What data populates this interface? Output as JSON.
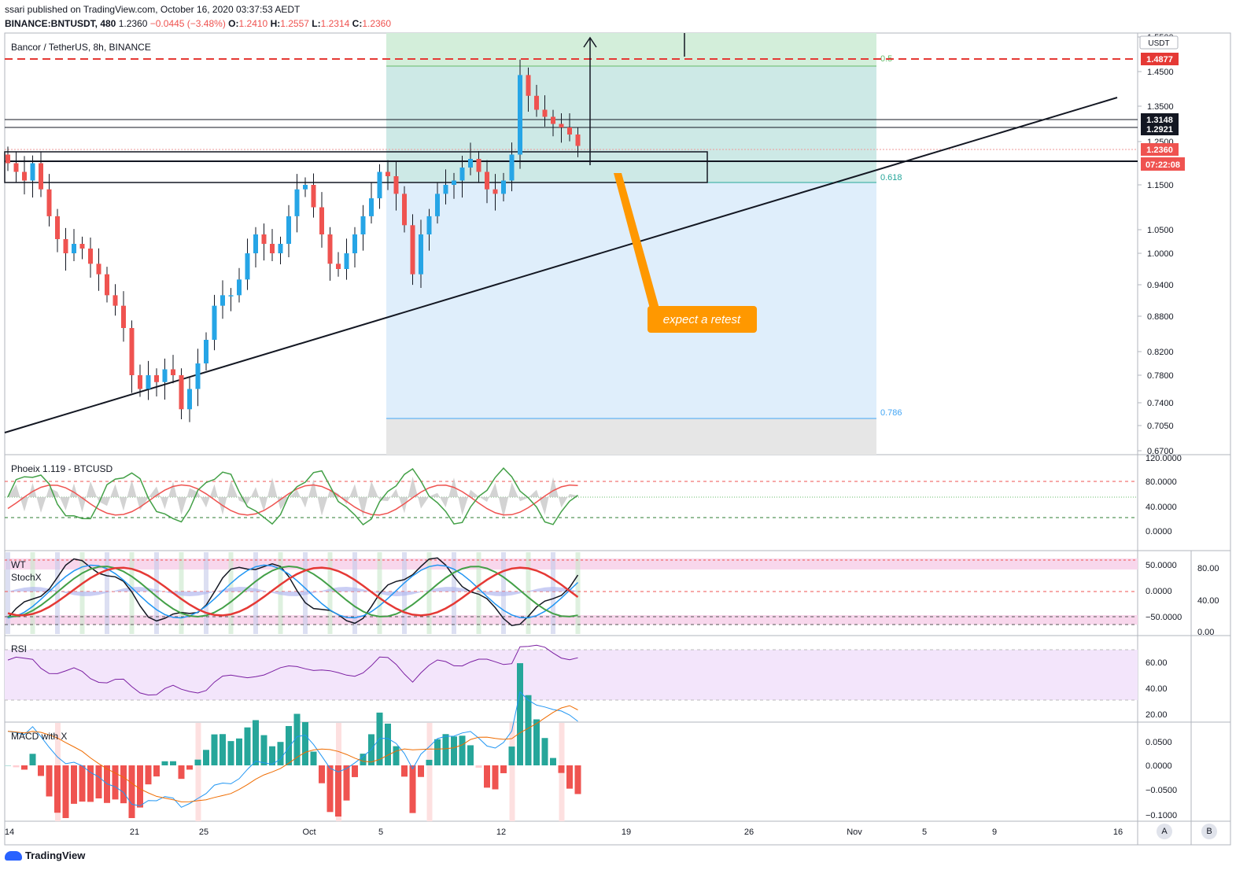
{
  "header": {
    "published": "ssari published on TradingView.com, October 16, 2020 03:37:53 AEDT",
    "symbol_line": "BINANCE:BNTUSDT, 480",
    "last": "1.2360",
    "change": "−0.0445 (−3.48%)",
    "o_label": "O:",
    "o": "1.2410",
    "h_label": "H:",
    "h": "1.2557",
    "l_label": "L:",
    "l": "1.2314",
    "c_label": "C:",
    "c": "1.2360"
  },
  "main_pane": {
    "title": "Bancor / TetherUS, 8h, BINANCE",
    "currency": "USDT",
    "price_ticks": [
      "1.5500",
      "1.4500",
      "1.3500",
      "1.2500",
      "1.1500",
      "1.0500",
      "1.0000",
      "0.9400",
      "0.8800",
      "0.8200",
      "0.7800",
      "0.7400",
      "0.7050",
      "0.6700"
    ],
    "badges": {
      "resistance": "1.4877",
      "level1": "1.3148",
      "level2": "1.2921",
      "last": "1.2360",
      "countdown": "07:22:08"
    },
    "fib_labels": {
      "f05": "0.5",
      "f0618": "0.618",
      "f0786": "0.786"
    },
    "annotation": "expect a retest",
    "colors": {
      "up": "#26a5e6",
      "down": "#ef5350",
      "fib_green": "#d3eeda",
      "fib_teal": "#cde9e6",
      "fib_blue": "#dfeefb",
      "fib_gray": "#e6e6e6",
      "callout": "#ff9800"
    }
  },
  "x_axis": [
    "14",
    "21",
    "25",
    "Oct",
    "5",
    "12",
    "19",
    "26",
    "Nov",
    "5",
    "9",
    "16"
  ],
  "scale_buttons": [
    "A",
    "B"
  ],
  "indicators": {
    "phoeix": {
      "title": "Phoeix 1.119 - BTCUSD",
      "ticks": [
        "120.0000",
        "80.0000",
        "40.0000",
        "0.0000"
      ]
    },
    "wt": {
      "title": "WT",
      "ticks": [
        "50.0000",
        "0.0000",
        "−50.0000"
      ],
      "right_ticks": [
        "80.00",
        "40.00",
        "0.00"
      ]
    },
    "stochx": {
      "title": "StochX"
    },
    "rsi": {
      "title": "RSI",
      "ticks": [
        "60.00",
        "40.00",
        "20.00"
      ]
    },
    "macd": {
      "title": "MACD with X",
      "ticks": [
        "0.0500",
        "0.0000",
        "−0.0500",
        "−0.1000"
      ]
    }
  },
  "branding": "TradingView",
  "chart_data": {
    "type": "candlestick",
    "title": "Bancor / TetherUS, 8h, BINANCE",
    "timeframe": "8h",
    "x_dates": [
      "2020-09-14",
      "2020-10-16"
    ],
    "ohlc_close_series": [
      1.2,
      1.18,
      1.16,
      1.2,
      1.14,
      1.08,
      1.03,
      1.0,
      1.02,
      1.01,
      0.98,
      0.96,
      0.92,
      0.9,
      0.86,
      0.78,
      0.76,
      0.78,
      0.77,
      0.79,
      0.78,
      0.73,
      0.76,
      0.8,
      0.84,
      0.9,
      0.92,
      0.92,
      0.95,
      1.0,
      1.04,
      1.02,
      1.0,
      1.02,
      1.08,
      1.14,
      1.15,
      1.1,
      1.04,
      0.98,
      0.97,
      1.0,
      1.04,
      1.08,
      1.12,
      1.18,
      1.17,
      1.13,
      1.06,
      0.96,
      1.04,
      1.08,
      1.13,
      1.15,
      1.16,
      1.19,
      1.21,
      1.18,
      1.14,
      1.13,
      1.16,
      1.22,
      1.44,
      1.38,
      1.34,
      1.32,
      1.3,
      1.29,
      1.27,
      1.24
    ],
    "last_close": 1.236,
    "levels": [
      1.4877,
      1.3148,
      1.2921,
      1.236
    ],
    "fib_retracement": {
      "0.5": 1.4877,
      "0.618": 1.15,
      "0.786": 0.705
    }
  }
}
